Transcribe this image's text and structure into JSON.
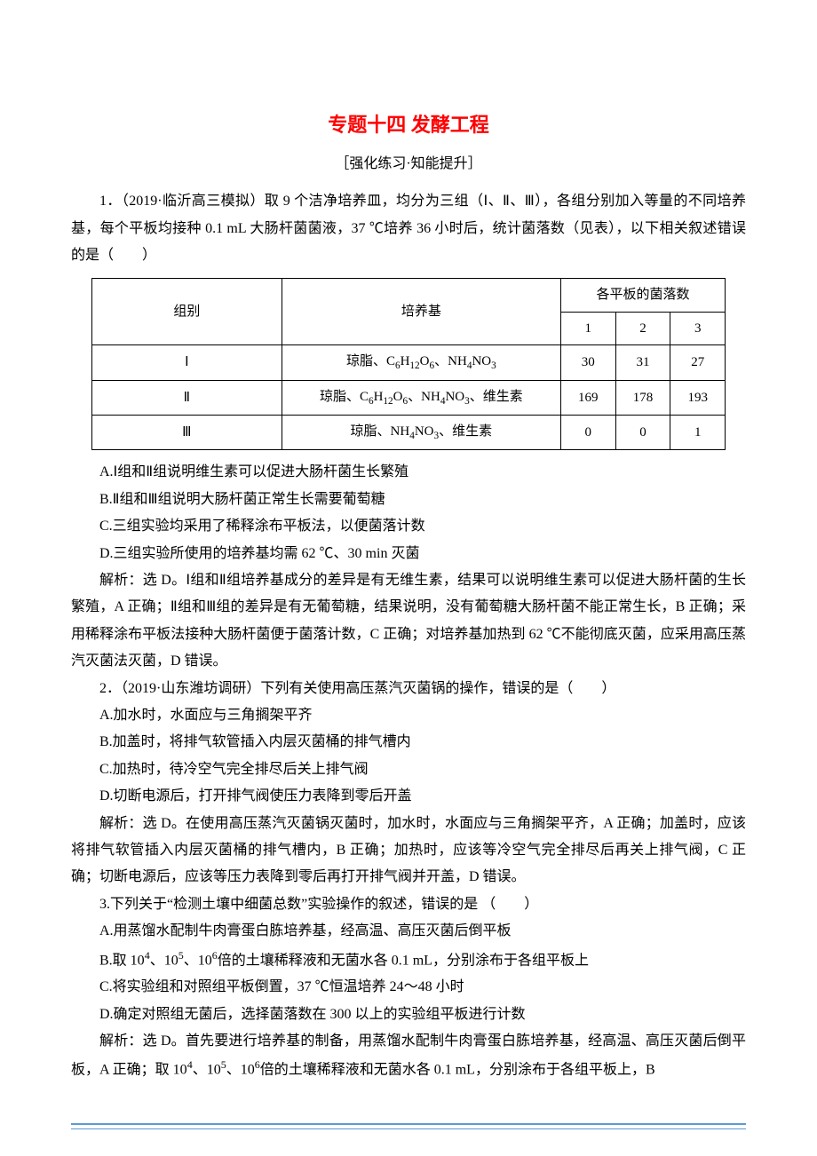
{
  "title": "专题十四 发酵工程",
  "subtitle": "［强化练习·知能提升］",
  "q1": {
    "stem": "1．（2019·临沂高三模拟）取 9 个洁净培养皿，均分为三组（Ⅰ、Ⅱ、Ⅲ），各组分别加入等量的不同培养基，每个平板均接种 0.1 mL 大肠杆菌菌液，37 ℃培养 36 小时后，统计菌落数（见表），以下相关叙述错误的是（　　）",
    "table": {
      "header_group": "组别",
      "header_medium": "培养基",
      "header_counts": "各平板的菌落数",
      "sub1": "1",
      "sub2": "2",
      "sub3": "3",
      "rows": [
        {
          "group": "Ⅰ",
          "v1": "30",
          "v2": "31",
          "v3": "27"
        },
        {
          "group": "Ⅱ",
          "v1": "169",
          "v2": "178",
          "v3": "193"
        },
        {
          "group": "Ⅲ",
          "v1": "0",
          "v2": "0",
          "v3": "1"
        }
      ],
      "medium1_prefix": "琼脂、C",
      "medium1_h": "H",
      "medium1_o": "O",
      "medium1_nh": "、NH",
      "medium1_no": "NO",
      "medium2_prefix": "琼脂、C",
      "medium2_suffix": "、维生素",
      "medium3_prefix": "琼脂、NH",
      "medium3_suffix": "、维生素",
      "n6": "6",
      "n12": "12",
      "n4": "4",
      "n3": "3"
    },
    "optA": "A.Ⅰ组和Ⅱ组说明维生素可以促进大肠杆菌生长繁殖",
    "optB": "B.Ⅱ组和Ⅲ组说明大肠杆菌正常生长需要葡萄糖",
    "optC": "C.三组实验均采用了稀释涂布平板法，以便菌落计数",
    "optD": "D.三组实验所使用的培养基均需 62 ℃、30 min 灭菌",
    "exp": "解析：选 D。Ⅰ组和Ⅱ组培养基成分的差异是有无维生素，结果可以说明维生素可以促进大肠杆菌的生长繁殖，A 正确；Ⅱ组和Ⅲ组的差异是有无葡萄糖，结果说明，没有葡萄糖大肠杆菌不能正常生长，B 正确；采用稀释涂布平板法接种大肠杆菌便于菌落计数，C 正确；对培养基加热到 62 ℃不能彻底灭菌，应采用高压蒸汽灭菌法灭菌，D 错误。"
  },
  "q2": {
    "stem": "2．（2019·山东潍坊调研）下列有关使用高压蒸汽灭菌锅的操作，错误的是（　　）",
    "optA": "A.加水时，水面应与三角搁架平齐",
    "optB": "B.加盖时，将排气软管插入内层灭菌桶的排气槽内",
    "optC": "C.加热时，待冷空气完全排尽后关上排气阀",
    "optD": "D.切断电源后，打开排气阀使压力表降到零后开盖",
    "exp": "解析：选 D。在使用高压蒸汽灭菌锅灭菌时，加水时，水面应与三角搁架平齐，A 正确；加盖时，应该将排气软管插入内层灭菌桶的排气槽内，B 正确；加热时，应该等冷空气完全排尽后再关上排气阀，C 正确；切断电源后，应该等压力表降到零后再打开排气阀并开盖，D 错误。"
  },
  "q3": {
    "stem": "3.下列关于“检测土壤中细菌总数”实验操作的叙述，错误的是 （　　）",
    "optA": "A.用蒸馏水配制牛肉膏蛋白胨培养基，经高温、高压灭菌后倒平板",
    "optB_pre": "B.取 10",
    "optB_mid1": "、10",
    "optB_mid2": "、10",
    "optB_post": "倍的土壤稀释液和无菌水各 0.1 mL，分别涂布于各组平板上",
    "e4": "4",
    "e5": "5",
    "e6": "6",
    "optC": "C.将实验组和对照组平板倒置，37 ℃恒温培养 24～48 小时",
    "optD": "D.确定对照组无菌后，选择菌落数在 300 以上的实验组平板进行计数",
    "exp_pre": "解析：选 D。首先要进行培养基的制备，用蒸馏水配制牛肉膏蛋白胨培养基，经高温、高压灭菌后倒平板，A 正确；取 10",
    "exp_mid1": "、10",
    "exp_mid2": "、10",
    "exp_post": "倍的土壤稀释液和无菌水各 0.1 mL，分别涂布于各组平板上，B"
  }
}
